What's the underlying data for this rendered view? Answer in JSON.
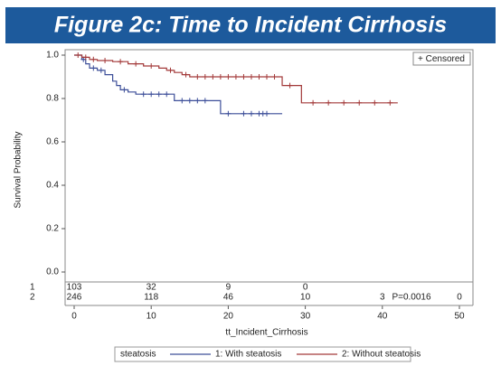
{
  "chart_data": {
    "type": "step",
    "title": "Figure 2c: Time to Incident Cirrhosis",
    "x_label": "tt_Incident_Cirrhosis",
    "y_label": "Survival Probability",
    "xlim": [
      0,
      50
    ],
    "ylim": [
      0,
      1
    ],
    "xticks": [
      0,
      10,
      20,
      30,
      40,
      50
    ],
    "yticks": [
      {
        "value": 0,
        "label": "0.0"
      },
      {
        "value": 0.2,
        "label": "0.2"
      },
      {
        "value": 0.4,
        "label": "0.4"
      },
      {
        "value": 0.6,
        "label": "0.6"
      },
      {
        "value": 0.8,
        "label": "0.8"
      },
      {
        "value": 1,
        "label": "1.0"
      }
    ],
    "legend_title": "steatosis",
    "censored_label": "+ Censored",
    "annotation": "P=0.0016",
    "at_risk_x": [
      0,
      10,
      20,
      30,
      40,
      50
    ],
    "series": [
      {
        "name": "1: With steatosis",
        "color": "#3d4f99",
        "risk_label": "1",
        "x": [
          0,
          1,
          1.5,
          2,
          3,
          4,
          5,
          5.5,
          6,
          7,
          8,
          13,
          19,
          27
        ],
        "values": [
          1.0,
          0.98,
          0.96,
          0.94,
          0.93,
          0.91,
          0.88,
          0.86,
          0.84,
          0.83,
          0.82,
          0.79,
          0.73,
          0.73
        ],
        "censor_x": [
          1.2,
          2.5,
          3.5,
          6.5,
          9,
          10,
          11,
          12,
          14,
          15,
          16,
          17,
          20,
          22,
          23,
          24,
          24.5,
          25
        ],
        "censor_y": [
          0.98,
          0.94,
          0.93,
          0.84,
          0.82,
          0.82,
          0.82,
          0.82,
          0.79,
          0.79,
          0.79,
          0.79,
          0.73,
          0.73,
          0.73,
          0.73,
          0.73,
          0.73
        ],
        "at_risk": [
          103,
          32,
          9,
          0,
          null,
          null
        ]
      },
      {
        "name": "2: Without steatosis",
        "color": "#a33a3a",
        "risk_label": "2",
        "x": [
          0,
          1,
          2,
          3,
          5,
          7,
          9,
          11,
          12,
          13,
          14,
          15,
          27,
          29.5,
          42
        ],
        "values": [
          1.0,
          0.99,
          0.98,
          0.975,
          0.97,
          0.96,
          0.95,
          0.94,
          0.93,
          0.92,
          0.91,
          0.9,
          0.86,
          0.78,
          0.78
        ],
        "censor_x": [
          0.5,
          1.5,
          2.5,
          4,
          6,
          8,
          10,
          12.5,
          14.5,
          16,
          17,
          18,
          19,
          20,
          21,
          22,
          23,
          24,
          25,
          26,
          28,
          31,
          33,
          35,
          37,
          39,
          41
        ],
        "censor_y": [
          1.0,
          0.99,
          0.98,
          0.975,
          0.97,
          0.96,
          0.95,
          0.93,
          0.91,
          0.9,
          0.9,
          0.9,
          0.9,
          0.9,
          0.9,
          0.9,
          0.9,
          0.9,
          0.9,
          0.9,
          0.86,
          0.78,
          0.78,
          0.78,
          0.78,
          0.78,
          0.78
        ],
        "at_risk": [
          246,
          118,
          46,
          10,
          3,
          0
        ]
      }
    ]
  }
}
